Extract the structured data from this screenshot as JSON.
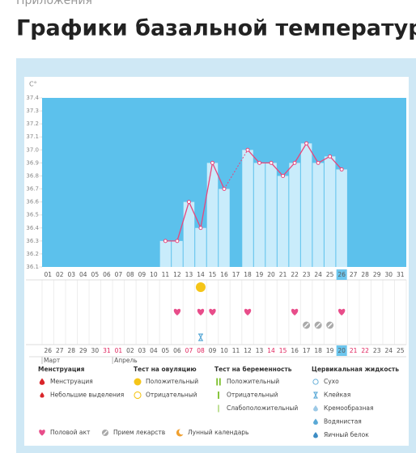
{
  "breadcrumb": "Приложения",
  "chart_data": {
    "type": "line",
    "title": "Графики базальной температуры",
    "y_unit": "C°",
    "categories": [
      "01",
      "02",
      "03",
      "04",
      "05",
      "06",
      "07",
      "08",
      "09",
      "10",
      "11",
      "12",
      "13",
      "14",
      "15",
      "16",
      "17",
      "18",
      "19",
      "20",
      "21",
      "22",
      "23",
      "24",
      "25",
      "26",
      "27",
      "28",
      "29",
      "30",
      "31"
    ],
    "series": [
      {
        "color": "#e8467c",
        "values": [
          null,
          null,
          null,
          null,
          null,
          null,
          null,
          null,
          null,
          null,
          36.3,
          36.3,
          36.6,
          36.4,
          36.9,
          36.7,
          null,
          37.0,
          36.9,
          36.9,
          36.8,
          36.9,
          37.05,
          36.9,
          36.95,
          36.85,
          null,
          null,
          null,
          null,
          null
        ]
      }
    ],
    "bar_color": "#c9ecfb",
    "background_color": "#5cc1ec",
    "ylim": [
      36.1,
      37.4
    ],
    "yticks": [
      36.1,
      36.2,
      36.3,
      36.4,
      36.5,
      36.6,
      36.7,
      36.8,
      36.9,
      {
        "value": 37,
        "label": "37.0"
      },
      37.1,
      37.2,
      37.3,
      37.4
    ],
    "selected_category": "26",
    "markers": [
      {
        "icon": "dot-yellow",
        "days": [
          "14"
        ]
      },
      {
        "icon": "heart",
        "days": [
          "12",
          "14",
          "15",
          "18",
          "22",
          "26"
        ]
      },
      {
        "icon": "pill",
        "days": [
          "23",
          "24",
          "25"
        ]
      },
      {
        "icon": "hourglass",
        "days": [
          "14"
        ]
      }
    ],
    "calendar": {
      "dates": [
        {
          "label": "26",
          "color": "#555"
        },
        {
          "label": "27",
          "color": "#555"
        },
        {
          "label": "28",
          "color": "#555"
        },
        {
          "label": "29",
          "color": "#555"
        },
        {
          "label": "30",
          "color": "#555"
        },
        {
          "label": "31",
          "color": "#e0245e"
        },
        {
          "label": "01",
          "color": "#e0245e"
        },
        {
          "label": "02",
          "color": "#555"
        },
        {
          "label": "03",
          "color": "#555"
        },
        {
          "label": "04",
          "color": "#555"
        },
        {
          "label": "05",
          "color": "#555"
        },
        {
          "label": "06",
          "color": "#555"
        },
        {
          "label": "07",
          "color": "#e0245e"
        },
        {
          "label": "08",
          "color": "#e0245e"
        },
        {
          "label": "09",
          "color": "#555"
        },
        {
          "label": "10",
          "color": "#555"
        },
        {
          "label": "11",
          "color": "#555"
        },
        {
          "label": "12",
          "color": "#555"
        },
        {
          "label": "13",
          "color": "#555"
        },
        {
          "label": "14",
          "color": "#e0245e"
        },
        {
          "label": "15",
          "color": "#e0245e"
        },
        {
          "label": "16",
          "color": "#555"
        },
        {
          "label": "17",
          "color": "#555"
        },
        {
          "label": "18",
          "color": "#555"
        },
        {
          "label": "19",
          "color": "#555"
        },
        {
          "label": "20",
          "color": "#555"
        },
        {
          "label": "21",
          "color": "#e0245e"
        },
        {
          "label": "22",
          "color": "#e0245e"
        },
        {
          "label": "23",
          "color": "#555"
        },
        {
          "label": "24",
          "color": "#555"
        },
        {
          "label": "25",
          "color": "#555"
        }
      ],
      "selected_date": "20",
      "months": [
        {
          "label": "Март",
          "start": "26"
        },
        {
          "label": "Апрель",
          "start": "01"
        }
      ]
    },
    "legend_groups": [
      {
        "title": "Менструация",
        "items": [
          {
            "label": "Менструация",
            "icon": "drop-red"
          },
          {
            "label": "Небольшие выделения",
            "icon": "drop-small-red"
          }
        ]
      },
      {
        "title": "Тест на овуляцию",
        "items": [
          {
            "label": "Положительный",
            "icon": "dot-yellow"
          },
          {
            "label": "Отрицательный",
            "icon": "ring-yellow"
          }
        ]
      },
      {
        "title": "Тест на беременность",
        "items": [
          {
            "label": "Положительный",
            "icon": "bars-green"
          },
          {
            "label": "Отрицательный",
            "icon": "bar-green"
          },
          {
            "label": "Слабоположительный",
            "icon": "bar-green-light"
          }
        ]
      },
      {
        "title": "Цервикальная жидкость",
        "items": [
          {
            "label": "Сухо",
            "icon": "ring-blue"
          },
          {
            "label": "Клейкая",
            "icon": "hourglass"
          },
          {
            "label": "Кремообразная",
            "icon": "drop-blue-light"
          },
          {
            "label": "Водянистая",
            "icon": "drop-blue"
          },
          {
            "label": "Яичный белок",
            "icon": "drop-blue-dark"
          }
        ]
      }
    ],
    "legend_extra": [
      {
        "label": "Половой акт",
        "icon": "heart"
      },
      {
        "label": "Прием лекарств",
        "icon": "pill"
      },
      {
        "label": "Лунный календарь",
        "icon": "moon"
      }
    ]
  }
}
